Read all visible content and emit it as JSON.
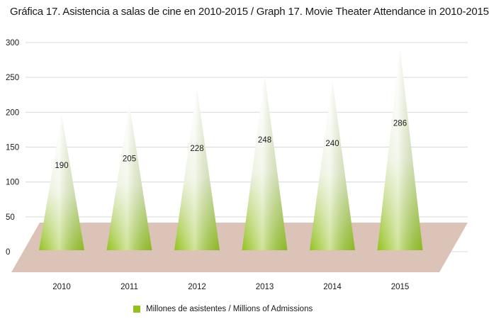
{
  "title": "Gráfica 17. Asistencia a salas de cine en 2010-2015 / Graph 17. Movie Theater Attendance in 2010-2015",
  "legend_label": "Millones de asistentes / Millions of Admissions",
  "colors": {
    "series": "#94c11f",
    "floor": "#dcc3b8",
    "grid": "#d9d9d9"
  },
  "chart_data": {
    "type": "bar",
    "title": "Gráfica 17. Asistencia a salas de cine en 2010-2015 / Graph 17. Movie Theater Attendance in 2010-2015",
    "categories": [
      "2010",
      "2011",
      "2012",
      "2013",
      "2014",
      "2015"
    ],
    "series": [
      {
        "name": "Millones de asistentes / Millions of Admissions",
        "values": [
          190,
          205,
          228,
          248,
          240,
          286
        ]
      }
    ],
    "ylim": [
      0,
      300
    ],
    "yticks": [
      "0",
      "50",
      "100",
      "150",
      "200",
      "250",
      "300"
    ],
    "grid": true,
    "legend": "bottom",
    "xlabel": "",
    "ylabel": ""
  }
}
